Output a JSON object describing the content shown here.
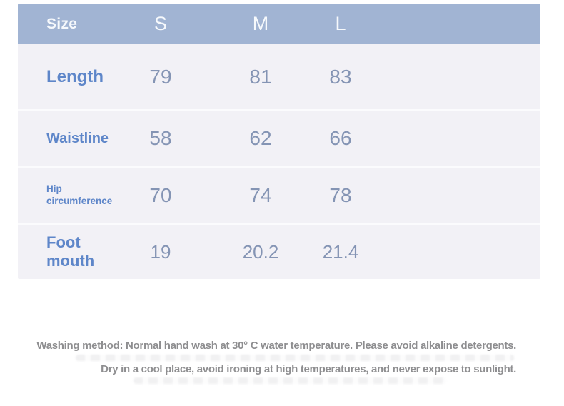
{
  "table": {
    "header": {
      "size_label": "Size",
      "columns": [
        "S",
        "M",
        "L"
      ]
    },
    "rows": [
      {
        "label": "Length",
        "values": [
          "79",
          "81",
          "83"
        ]
      },
      {
        "label": "Waistline",
        "values": [
          "58",
          "62",
          "66"
        ]
      },
      {
        "label": "Hip circumference",
        "values": [
          "70",
          "74",
          "78"
        ]
      },
      {
        "label": "Foot mouth",
        "values": [
          "19",
          "20.2",
          "21.4"
        ]
      }
    ]
  },
  "care": {
    "line1": "Washing method: Normal hand wash at 30° C water temperature. Please avoid alkaline detergents.",
    "line2": "Dry in a cool place, avoid ironing at high temperatures, and never expose to sunlight."
  },
  "colors": {
    "header_background": "#a1b4d3",
    "table_background": "#f2f1f6",
    "row_separator": "#fbfbfd",
    "label_blue": "#5e86c9",
    "value_gray_blue": "#8494b4",
    "care_text_gray": "#8e8e90"
  }
}
